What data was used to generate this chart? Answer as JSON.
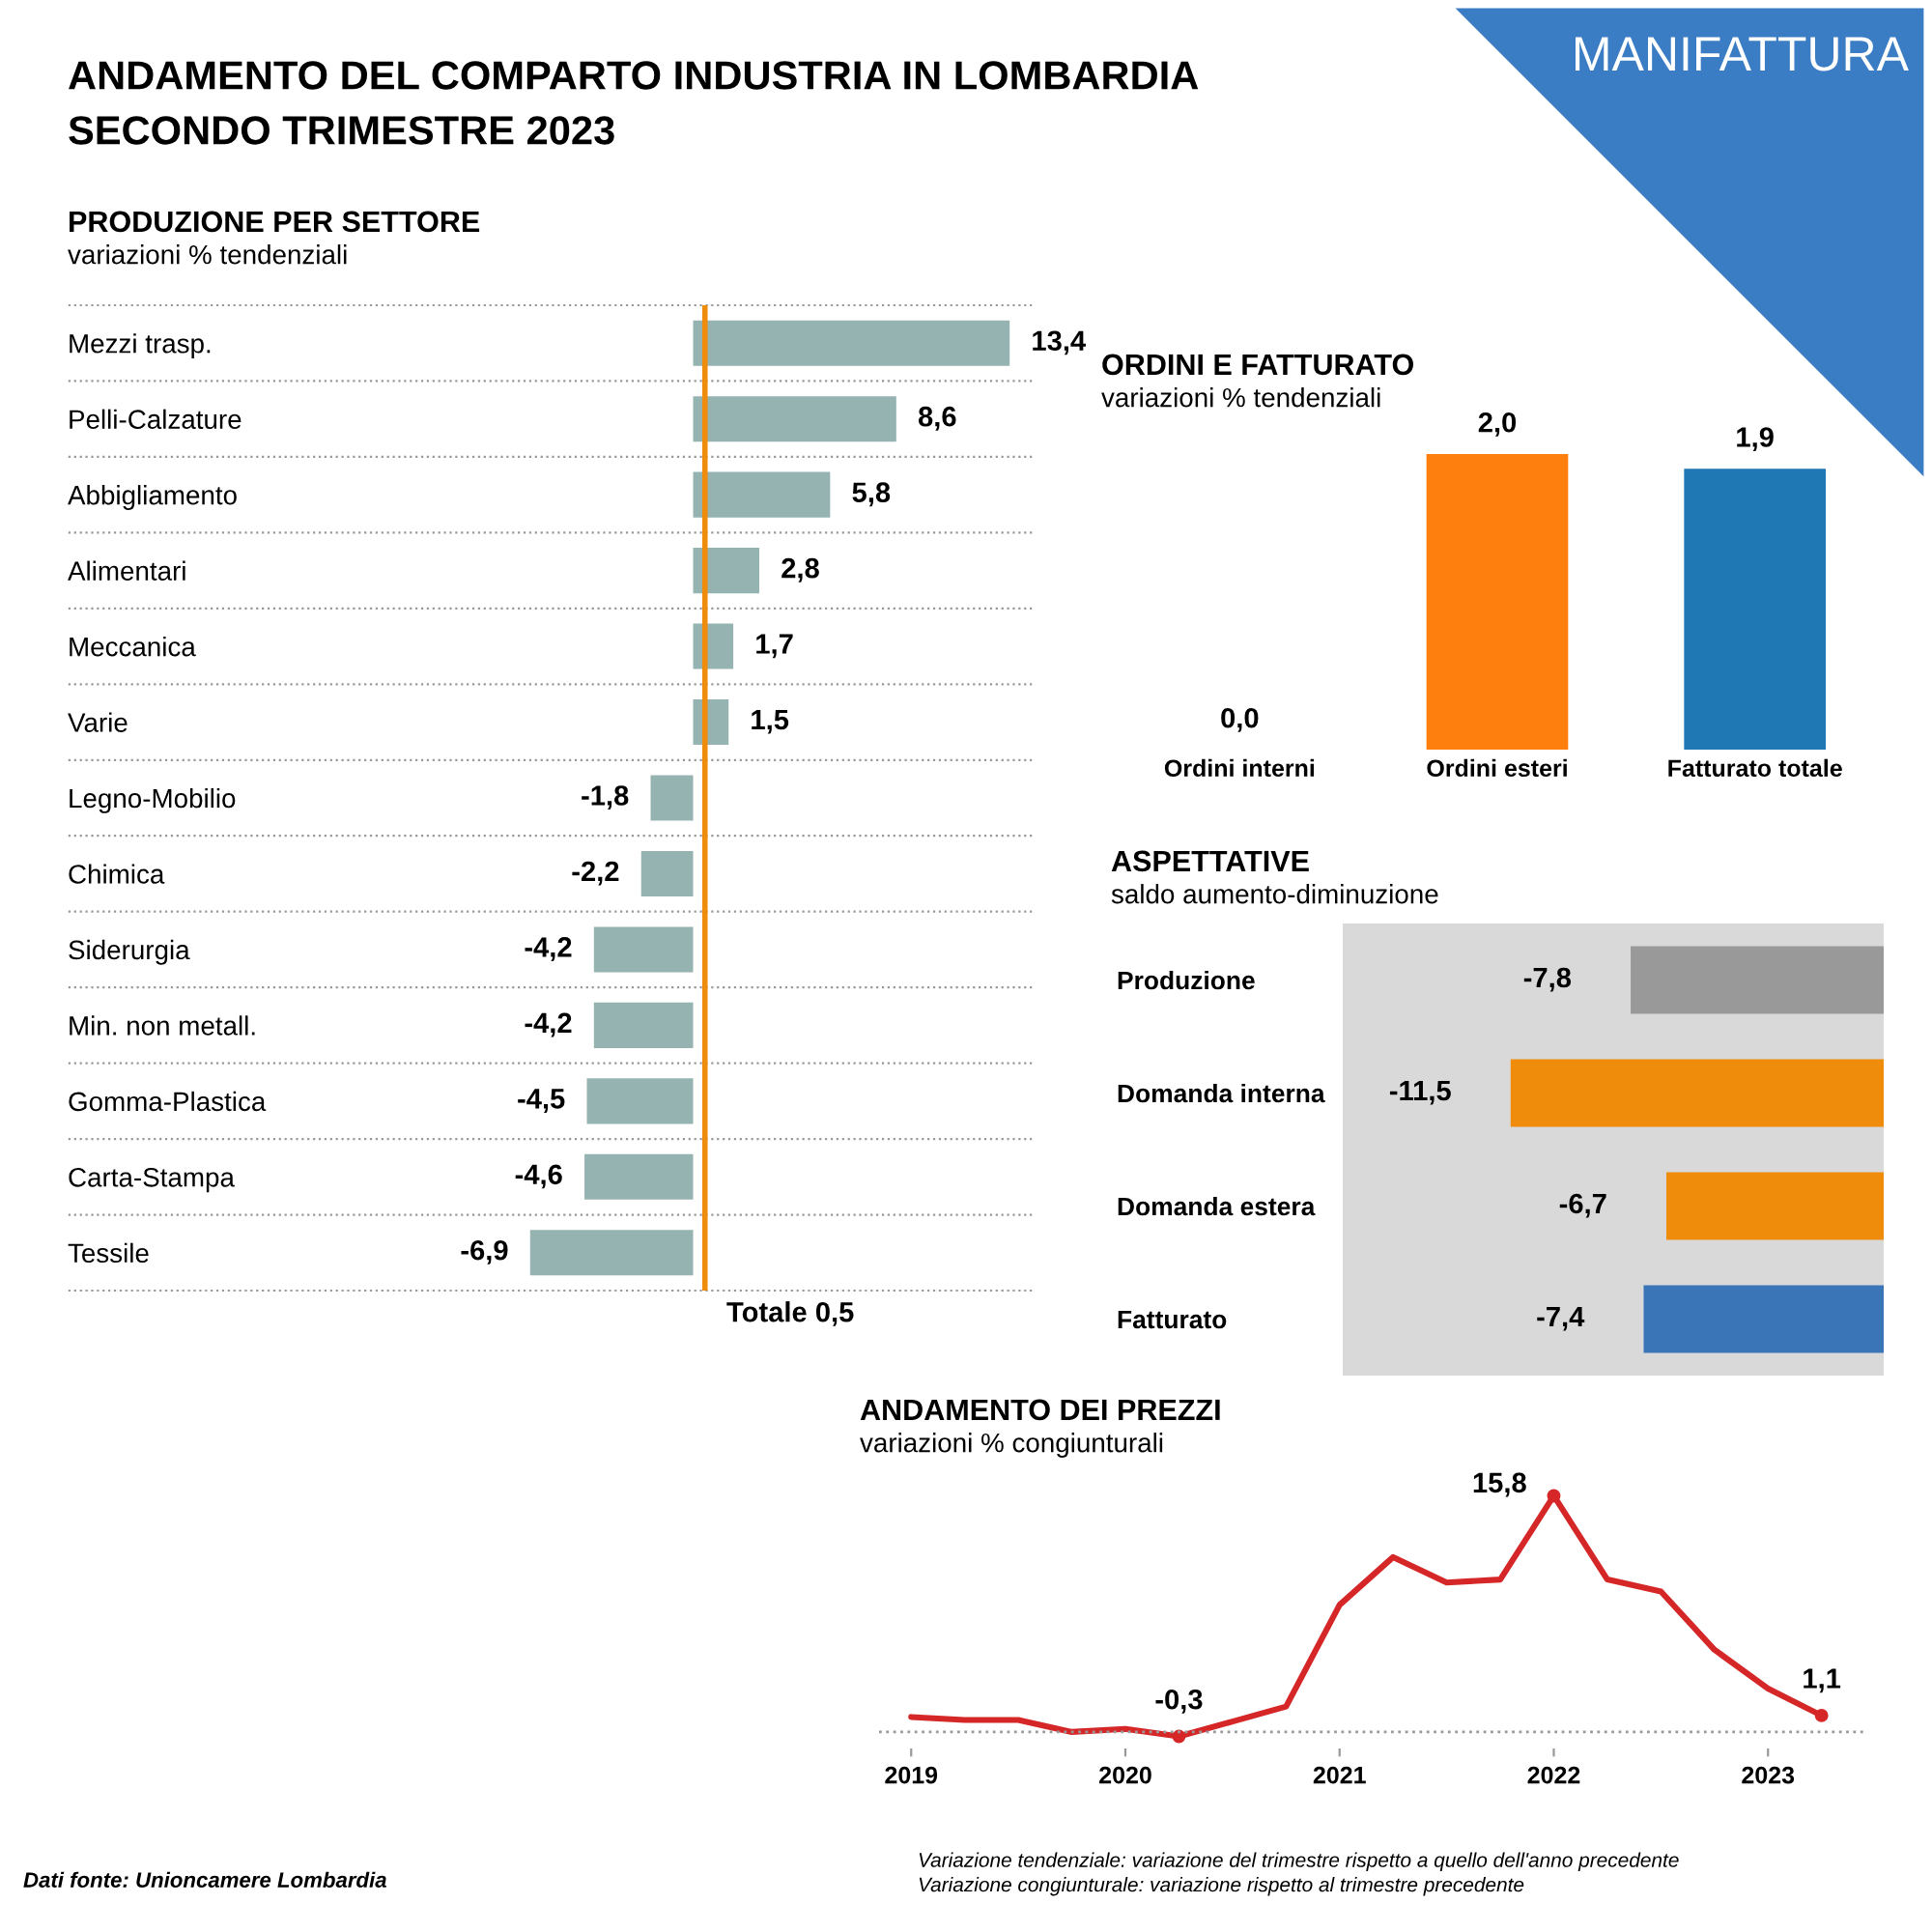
{
  "chart_data": [
    {
      "type": "bar",
      "orientation": "horizontal",
      "title": "PRODUZIONE PER SETTORE",
      "subtitle": "variazioni % tendenziali",
      "categories": [
        "Mezzi trasp.",
        "Pelli-Calzature",
        "Abbigliamento",
        "Alimentari",
        "Meccanica",
        "Varie",
        "Legno-Mobilio",
        "Chimica",
        "Siderurgia",
        "Min. non metall.",
        "Gomma-Plastica",
        "Carta-Stampa",
        "Tessile"
      ],
      "values": [
        13.4,
        8.6,
        5.8,
        2.8,
        1.7,
        1.5,
        -1.8,
        -2.2,
        -4.2,
        -4.2,
        -4.5,
        -4.6,
        -6.9
      ],
      "value_labels": [
        "13,4",
        "8,6",
        "5,8",
        "2,8",
        "1,7",
        "1,5",
        "-1,8",
        "-2,2",
        "-4,2",
        "-4,2",
        "-4,5",
        "-4,6",
        "-6,9"
      ],
      "color": "#95b3b1",
      "ref_lines": [
        {
          "axis": "x",
          "value": 0.5,
          "label": "Totale 0,5",
          "color": "#f08c0c"
        }
      ],
      "annotations": [
        "ANDAMENTO DEL COMPARTO INDUSTRIA IN LOMBARDIA\nSECONDO TRIMESTRE 2023",
        "MANIFATTURA",
        "Dati fonte: Unioncamere Lombardia"
      ]
    },
    {
      "type": "bar",
      "title": "ORDINI E FATTURATO",
      "subtitle": "variazioni % tendenziali",
      "categories": [
        "Ordini interni",
        "Ordini esteri",
        "Fatturato totale"
      ],
      "values": [
        0.0,
        2.0,
        1.9
      ],
      "value_labels": [
        "0,0",
        "2,0",
        "1,9"
      ],
      "colors": [
        "#ff7f0e",
        "#ff7f0e",
        "#1f77b4"
      ]
    },
    {
      "type": "bar",
      "orientation": "horizontal",
      "title": "ASPETTATIVE",
      "subtitle": "saldo aumento-diminuzione",
      "categories": [
        "Produzione",
        "Domanda interna",
        "Domanda estera",
        "Fatturato"
      ],
      "values": [
        -7.8,
        -11.5,
        -6.7,
        -7.4
      ],
      "value_labels": [
        "-7,8",
        "-11,5",
        "-6,7",
        "-7,4"
      ],
      "colors": [
        "#999999",
        "#f08c0c",
        "#f08c0c",
        "#3a75b8"
      ]
    },
    {
      "type": "line",
      "title": "ANDAMENTO DEI PREZZI",
      "subtitle": "variazioni % congiunturali",
      "x": [
        2019,
        2019.25,
        2019.5,
        2019.75,
        2020,
        2020.25,
        2020.5,
        2020.75,
        2021,
        2021.25,
        2021.5,
        2021.75,
        2022,
        2022.25,
        2022.5,
        2022.75,
        2023,
        2023.25
      ],
      "values": [
        1.0,
        0.8,
        0.8,
        0.0,
        0.2,
        -0.3,
        0.7,
        1.7,
        8.5,
        11.7,
        10.0,
        10.2,
        15.8,
        10.2,
        9.4,
        5.5,
        2.9,
        1.1
      ],
      "value_labels": [
        null,
        null,
        null,
        null,
        null,
        "-0,3",
        null,
        null,
        null,
        null,
        null,
        null,
        "15,8",
        null,
        null,
        null,
        null,
        "1,1"
      ],
      "color": "#d62728",
      "line_style": "solid",
      "xlim": [
        2018.85,
        2023.45
      ],
      "xticks": [
        2019,
        2020,
        2021,
        2022,
        2023
      ],
      "tick_labels": "x",
      "ref_lines": [
        {
          "axis": "y",
          "value": 0,
          "label": null,
          "color": "#999999",
          "line_style": "dotted"
        }
      ],
      "annotations": [
        "Variazione tendenziale: variazione del trimestre rispetto a quello dell'anno precedente\nVariazione congiunturale: variazione rispetto al trimestre precedente"
      ]
    }
  ]
}
